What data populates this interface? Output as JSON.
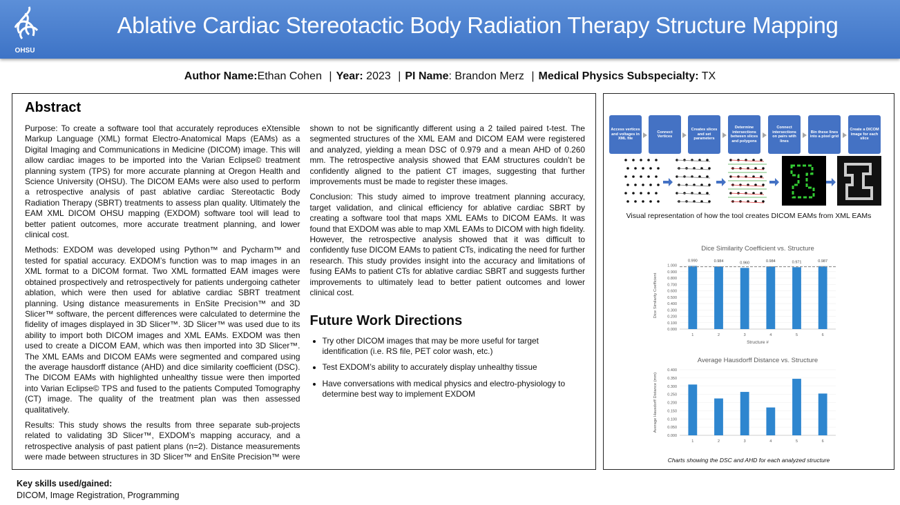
{
  "header": {
    "logo_text": "OHSU",
    "title": "Ablative Cardiac Stereotactic Body Radiation Therapy Structure Mapping"
  },
  "authors": {
    "separator": "|",
    "items": [
      {
        "label": "Author Name:",
        "value": "Ethan Cohen"
      },
      {
        "label": "Year:",
        "value": "2023"
      },
      {
        "label": "PI Name",
        "value": ": Brandon Merz"
      },
      {
        "label": "Medical Physics Subspecialty:",
        "value": "TX"
      }
    ]
  },
  "abstract": {
    "heading": "Abstract",
    "paragraphs": [
      "Purpose: To create a software tool that accurately reproduces eXtensible Markup Language (XML) format Electro-Anatomical Maps (EAMs) as a Digital Imaging and Communications in Medicine (DICOM) image. This will allow cardiac images to be imported into the Varian Eclipse© treatment planning system (TPS) for more accurate planning at Oregon Health and Science University (OHSU). The DICOM EAMs were also used to perform a retrospective analysis of past ablative cardiac Stereotactic Body Radiation Therapy (SBRT) treatments to assess plan quality. Ultimately the EAM XML DICOM OHSU mapping (EXDOM) software tool will lead to better patient outcomes, more accurate treatment planning, and lower clinical cost.",
      "Methods: EXDOM was developed using Python™ and Pycharm™ and tested for spatial accuracy. EXDOM’s function was to map images in an XML format to a DICOM format. Two XML formatted EAM images were obtained prospectively and retrospectively for patients undergoing catheter ablation, which were then used for ablative cardiac SBRT treatment planning. Using distance measurements in EnSite Precision™ and 3D Slicer™ software, the percent differences were calculated to determine the fidelity of images displayed in 3D Slicer™. 3D Slicer™ was used due to its ability to import both DICOM images and XML EAMs. EXDOM was then used to create a DICOM EAM, which was then imported into 3D Slicer™. The XML EAMs and DICOM EAMs were segmented and compared using the average hausdorff distance (AHD) and dice similarity coefficient (DSC). The DICOM EAMs with highlighted unhealthy tissue were then imported into Varian Eclipse© TPS and fused to the patients Computed Tomography (CT) image. The quality of the treatment plan was then assessed qualitatively.",
      "Results: This study shows the results from three separate sub-projects related to validating 3D Slicer™, EXDOM’s mapping accuracy, and a retrospective analysis of past patient plans (n=2). Distance measurements were made between structures in 3D Slicer™ and EnSite Precision™ were shown to not be significantly different using a 2 tailed paired t-test. The segmented structures of the XML EAM and DICOM EAM were registered and analyzed, yielding a mean DSC of 0.979 and a mean AHD of 0.260 mm. The retrospective analysis showed that EAM structures couldn’t be confidently aligned to the patient CT images, suggesting that further improvements must be made to register these images.",
      "Conclusion: This study aimed to improve treatment planning accuracy, target validation, and clinical efficiency for ablative cardiac SBRT by creating a software tool that maps XML EAMs to DICOM EAMs. It was found that EXDOM was able to map XML EAMs to DICOM with high fidelity. However, the retrospective analysis showed that it was difficult to confidently fuse DICOM EAMs to patient CTs, indicating the need for further research. This study provides insight into the accuracy and limitations of fusing EAMs to patient CTs for ablative cardiac SBRT and suggests further improvements to ultimately lead to better patient outcomes and lower clinical cost."
    ]
  },
  "future_work": {
    "heading": "Future Work Directions",
    "bullets": [
      "Try other DICOM images that may be more useful for target identification (i.e. RS file, PET color wash, etc.)",
      "Test EXDOM’s ability to accurately display unhealthy tissue",
      "Have conversations with medical physics and electro-physiology to determine best way to implement EXDOM"
    ]
  },
  "flowchart": {
    "steps": [
      "Access vertices and voltages in XML file",
      "Connect Vertices",
      "Creates slices and set parameters",
      "Determine intersections between slices and polygons",
      "Connect intersections on pairs with lines",
      "Bin these lines into a pixel grid",
      "Create a DICOM image for each slice"
    ],
    "caption": "Visual representation of how the tool creates DICOM EAMs from XML EAMs"
  },
  "chart_data": [
    {
      "type": "bar",
      "title": "Dice Similarity Coefficient vs. Structure",
      "y_label": "Dice Similarity Coefficient",
      "x_label": "Structure #",
      "categories": [
        "1",
        "2",
        "3",
        "4",
        "5",
        "6"
      ],
      "values": [
        0.99,
        0.984,
        0.96,
        0.984,
        0.971,
        0.987
      ],
      "value_labels": [
        "0.990",
        "0.984",
        "0.960",
        "0.984",
        "0.971",
        "0.987"
      ],
      "color": "#2e86cf",
      "reference_line": 0.979,
      "ylim": [
        0,
        1.05
      ],
      "yticks": [
        {
          "value": 0,
          "label": "0.000"
        },
        {
          "value": 0.1,
          "label": "0.100"
        },
        {
          "value": 0.2,
          "label": "0.200"
        },
        {
          "value": 0.3,
          "label": "0.300"
        },
        {
          "value": 0.4,
          "label": "0.400"
        },
        {
          "value": 0.5,
          "label": "0.500"
        },
        {
          "value": 0.6,
          "label": "0.600"
        },
        {
          "value": 0.7,
          "label": "0.700"
        },
        {
          "value": 0.8,
          "label": "0.800"
        },
        {
          "value": 0.9,
          "label": "0.900"
        },
        {
          "value": 1,
          "label": "1.000"
        }
      ],
      "grid": true
    },
    {
      "type": "bar",
      "title": "Average Hausdorff Distance vs. Structure",
      "y_label": "Average Hausdorff Distance (mm)",
      "categories": [
        "1",
        "2",
        "3",
        "4",
        "5",
        "6"
      ],
      "values": [
        0.31,
        0.225,
        0.265,
        0.17,
        0.345,
        0.255
      ],
      "color": "#2e86cf",
      "ylim": [
        0,
        0.4
      ],
      "yticks": [
        {
          "value": 0,
          "label": "0.000"
        },
        {
          "value": 0.05,
          "label": "0.050"
        },
        {
          "value": 0.1,
          "label": "0.100"
        },
        {
          "value": 0.15,
          "label": "0.150"
        },
        {
          "value": 0.2,
          "label": "0.200"
        },
        {
          "value": 0.25,
          "label": "0.250"
        },
        {
          "value": 0.3,
          "label": "0.300"
        },
        {
          "value": 0.35,
          "label": "0.350"
        },
        {
          "value": 0.4,
          "label": "0.400"
        }
      ],
      "grid": true
    }
  ],
  "charts_caption": "Charts showing the DSC and AHD for each analyzed structure",
  "skills": {
    "heading": "Key skills used/gained:",
    "text": "DICOM, Image Registration, Programming"
  }
}
